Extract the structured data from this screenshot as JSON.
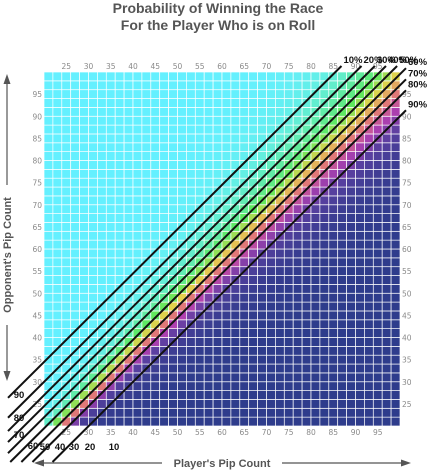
{
  "chart_data": {
    "type": "heatmap",
    "title": [
      "Probability of Winning the Race",
      "For the Player Who is on Roll"
    ],
    "xlabel": "Player's Pip Count",
    "ylabel": "Opponent's Pip Count",
    "xlim": [
      20,
      100
    ],
    "ylim": [
      20,
      100
    ],
    "x_ticks": [
      25,
      30,
      35,
      40,
      45,
      50,
      55,
      60,
      65,
      70,
      75,
      80,
      85,
      90,
      95
    ],
    "y_ticks": [
      25,
      30,
      35,
      40,
      45,
      50,
      55,
      60,
      65,
      70,
      75,
      80,
      85,
      90,
      95
    ],
    "grid": true,
    "color_scale": [
      {
        "p": 0.0,
        "color": "#2e3c8c"
      },
      {
        "p": 0.2,
        "color": "#5a3fa0"
      },
      {
        "p": 0.35,
        "color": "#b03fb0"
      },
      {
        "p": 0.5,
        "color": "#e07878"
      },
      {
        "p": 0.65,
        "color": "#e6d24c"
      },
      {
        "p": 0.8,
        "color": "#5ee85e"
      },
      {
        "p": 1.0,
        "color": "#64f0ff"
      }
    ],
    "series": [
      {
        "name": "90%",
        "offset": -10.0
      },
      {
        "name": "80%",
        "offset": -5.5
      },
      {
        "name": "70%",
        "offset": -3.0
      },
      {
        "name": "60%",
        "offset": -0.5
      },
      {
        "name": "50%",
        "offset": 2.0
      },
      {
        "name": "40%",
        "offset": 4.5
      },
      {
        "name": "30%",
        "offset": 7.0
      },
      {
        "name": "20%",
        "offset": 10.0
      },
      {
        "name": "10%",
        "offset": 14.5
      }
    ],
    "left_labels": [
      "90",
      "80",
      "70",
      "60"
    ],
    "bottom_labels": [
      "50",
      "40",
      "30",
      "20",
      "10"
    ]
  }
}
